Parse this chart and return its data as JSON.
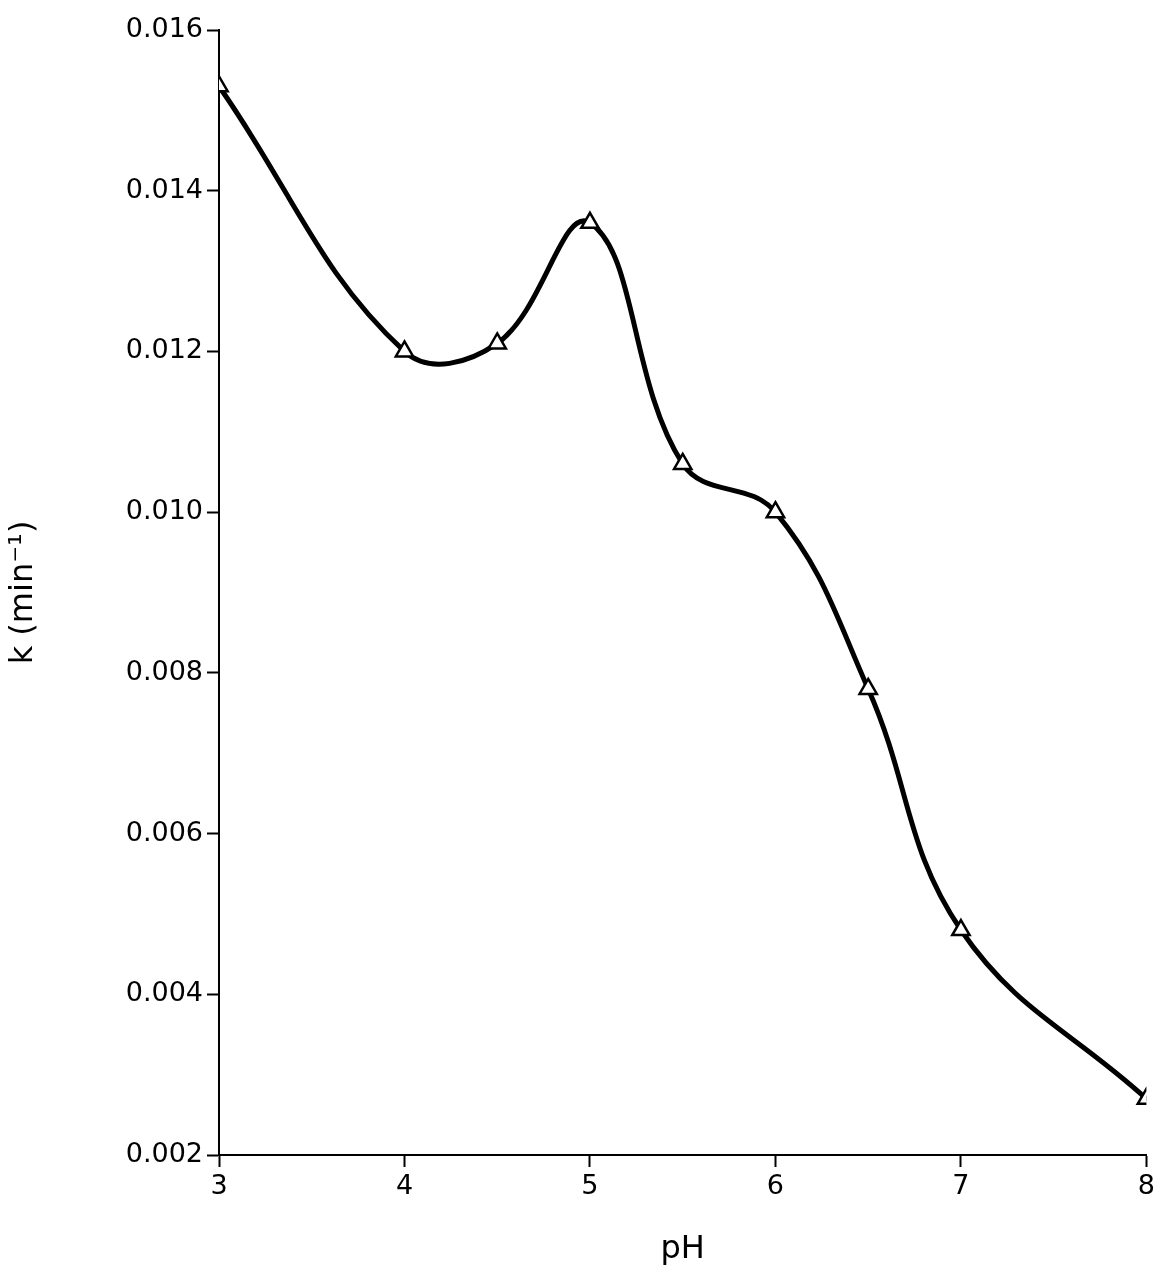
{
  "chart_data": {
    "type": "line",
    "xlabel": "pH",
    "ylabel": "k (min⁻¹)",
    "x": [
      3,
      4,
      4.5,
      5,
      5.5,
      6,
      6.5,
      7,
      8
    ],
    "series": [
      {
        "color": "#000000",
        "values": [
          0.0153,
          0.012,
          0.0121,
          0.0136,
          0.0106,
          0.01,
          0.0078,
          0.0048,
          0.0027
        ]
      }
    ],
    "xlim": [
      3,
      8
    ],
    "xticks": [
      3,
      4,
      5,
      6,
      7,
      8
    ],
    "ylim": [
      0.002,
      0.016
    ],
    "yticks": [
      0.002,
      0.004,
      0.006,
      0.008,
      {
        "value": 0.01,
        "label": "0.010"
      },
      0.012,
      0.014,
      0.016
    ],
    "tick_labels": "both",
    "marker": "triangle",
    "line_style": "solid",
    "grid": false,
    "legend": false
  }
}
